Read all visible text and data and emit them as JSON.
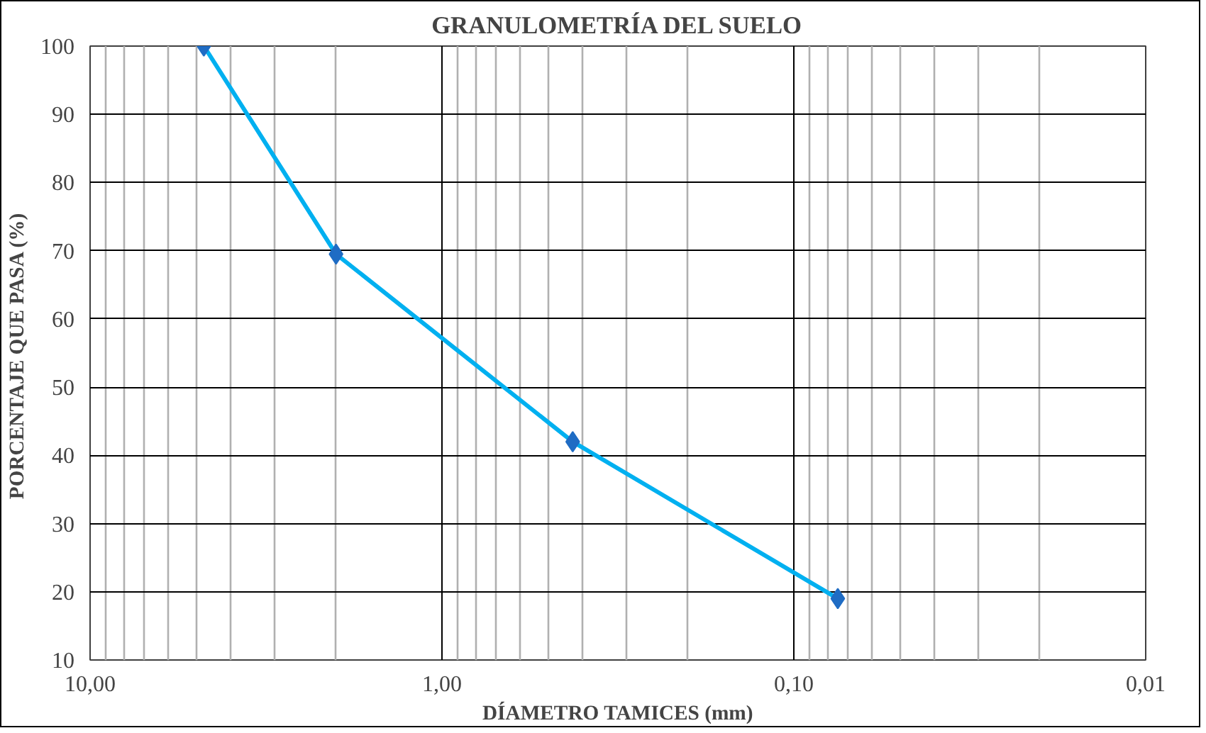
{
  "chart_data": {
    "type": "line",
    "title": "GRANULOMETRÍA DEL SUELO",
    "xlabel": "DÍAMETRO TAMICES (mm)",
    "ylabel": "PORCENTAJE QUE PASA  (%)",
    "x": [
      4.75,
      2.0,
      0.425,
      0.075
    ],
    "series": [
      {
        "color": "#00b0f0",
        "values": [
          100,
          69.5,
          42,
          19
        ]
      }
    ],
    "log": "x",
    "xlim": [
      10,
      0.01
    ],
    "xticks": [
      {
        "value": 10,
        "label": "10,00"
      },
      {
        "value": 1,
        "label": "1,00"
      },
      {
        "value": 0.1,
        "label": "0,10"
      },
      {
        "value": 0.01,
        "label": "0,01"
      }
    ],
    "ylim": [
      10,
      100
    ],
    "yticks": [
      10,
      20,
      30,
      40,
      50,
      60,
      70,
      80,
      90,
      100
    ],
    "grid": true,
    "marker": "diamond",
    "line_style": "solid"
  }
}
